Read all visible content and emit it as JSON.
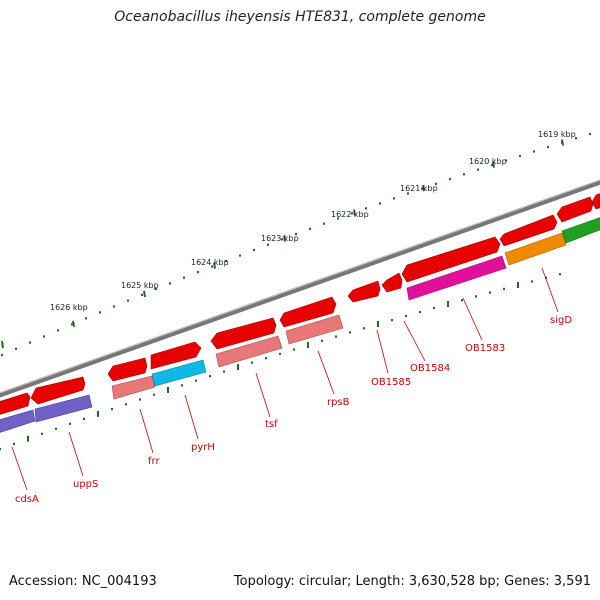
{
  "title": "Oceanobacillus iheyensis HTE831, complete genome",
  "footer": {
    "accession": "Accession: NC_004193",
    "topology": "Topology: circular; Length: 3,630,528 bp; Genes: 3,591"
  },
  "scale": {
    "unit": "kbp",
    "ticks": [
      {
        "kbp": 1626,
        "label": "1626 kbp"
      },
      {
        "kbp": 1625,
        "label": "1625 kbp"
      },
      {
        "kbp": 1624,
        "label": "1624 kbp"
      },
      {
        "kbp": 1623,
        "label": "1623 kbp"
      },
      {
        "kbp": 1622,
        "label": "1622 kbp"
      },
      {
        "kbp": 1621,
        "label": "1621 kbp"
      },
      {
        "kbp": 1620,
        "label": "1620 kbp"
      },
      {
        "kbp": 1619,
        "label": "1619 kbp"
      }
    ]
  },
  "gene_labels": [
    {
      "name": "cdsA",
      "color": "#cc0000"
    },
    {
      "name": "uppS",
      "color": "#cc0000"
    },
    {
      "name": "frr",
      "color": "#cc0000"
    },
    {
      "name": "pyrH",
      "color": "#cc0000"
    },
    {
      "name": "tsf",
      "color": "#cc0000"
    },
    {
      "name": "rpsB",
      "color": "#cc0000"
    },
    {
      "name": "OB1585",
      "color": "#cc0000"
    },
    {
      "name": "OB1584",
      "color": "#cc0000"
    },
    {
      "name": "OB1583",
      "color": "#cc0000"
    },
    {
      "name": "sigD",
      "color": "#cc0000"
    }
  ],
  "colors": {
    "backbone": "#7a7a7a",
    "tick": "#1f6b1f",
    "gene": "#e60000",
    "lavender": "#7060c8",
    "cyan": "#10b8e8",
    "pink": "#e87878",
    "magenta": "#e0109a",
    "orange": "#f08a00",
    "green": "#20a020"
  }
}
